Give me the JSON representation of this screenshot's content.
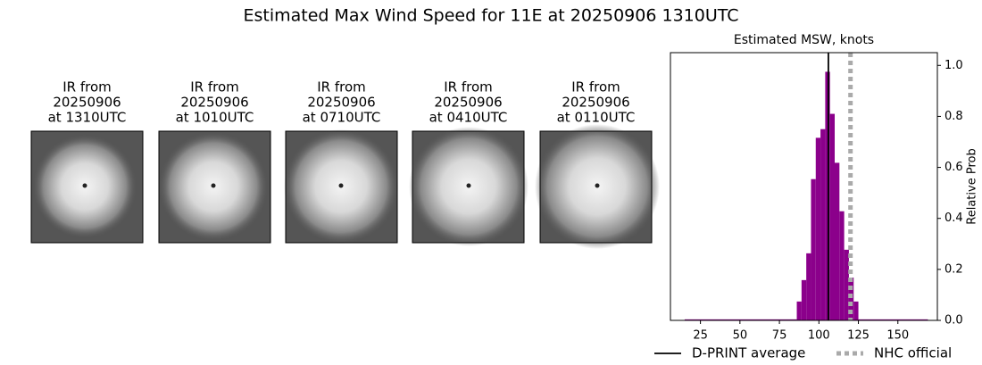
{
  "title": "Estimated Max Wind Speed for 11E at 20250906 1310UTC",
  "panels": [
    {
      "lines": [
        "IR from",
        "20250906",
        "at 1310UTC"
      ]
    },
    {
      "lines": [
        "IR from",
        "20250906",
        "at 1010UTC"
      ]
    },
    {
      "lines": [
        "IR from",
        "20250906",
        "at 0710UTC"
      ]
    },
    {
      "lines": [
        "IR from",
        "20250906",
        "at 0410UTC"
      ]
    },
    {
      "lines": [
        "IR from",
        "20250906",
        "at 0110UTC"
      ]
    }
  ],
  "chart_data": {
    "type": "histogram",
    "title": "Estimated MSW, knots",
    "y_label": "Relative Prob",
    "color": "#8b008b",
    "bins": [
      15,
      86,
      89,
      92,
      95,
      98,
      101,
      104,
      107,
      110,
      113,
      116,
      119,
      122,
      125,
      169
    ],
    "values": [
      0.004,
      0.074,
      0.158,
      0.263,
      0.554,
      0.716,
      0.75,
      0.975,
      0.81,
      0.618,
      0.428,
      0.277,
      0.168,
      0.074,
      0.004
    ],
    "xlim": [
      6,
      175
    ],
    "ylim": [
      0,
      1.05
    ],
    "xticks": [
      25,
      50,
      75,
      100,
      125,
      150
    ],
    "yticks": [
      {
        "value": 0,
        "label": "0.0"
      },
      0.2,
      0.4,
      0.6,
      0.8,
      {
        "value": 1,
        "label": "1.0"
      }
    ],
    "y_axis_side": "right",
    "reference_lines": [
      {
        "name": "D-PRINT average",
        "value": 106,
        "color": "#000000",
        "style": "solid"
      },
      {
        "name": "NHC official",
        "value": 120,
        "color": "#aaaaaa",
        "style": "dotted"
      }
    ]
  }
}
